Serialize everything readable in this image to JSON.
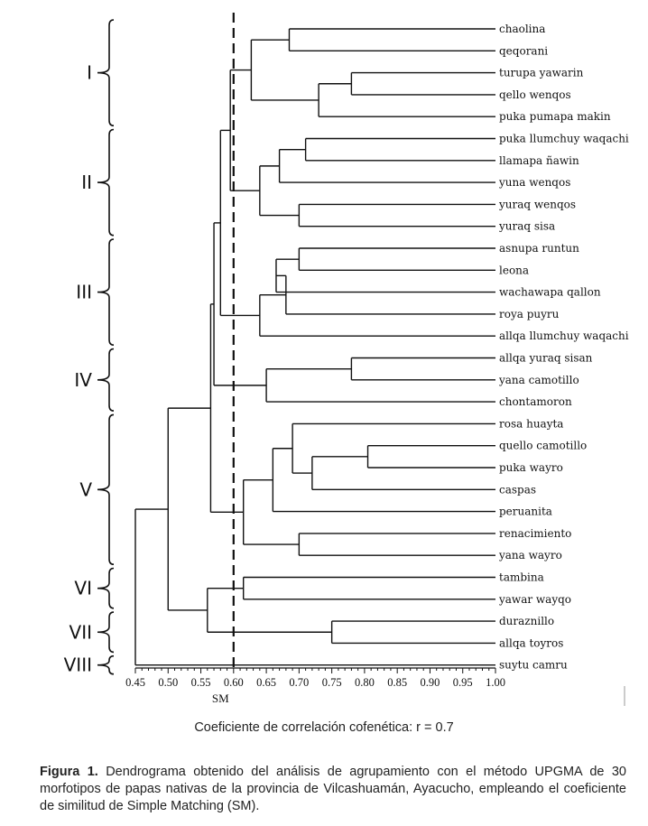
{
  "chart_data": {
    "type": "dendrogram",
    "xlabel": "SM",
    "xlim": [
      0.45,
      1.0
    ],
    "xticks": [
      "0.45",
      "0.50",
      "0.55",
      "0.60",
      "0.65",
      "0.70",
      "0.75",
      "0.80",
      "0.85",
      "0.90",
      "0.95",
      "1.00"
    ],
    "cutoff": 0.6,
    "leaves": [
      "chaolina",
      "qeqorani",
      "turupa yawarin",
      "qello wenqos",
      "puka pumapa makin",
      "puka llumchuy waqachi",
      "llamapa ñawin",
      "yuna wenqos",
      "yuraq wenqos",
      "yuraq sisa",
      "asnupa runtun",
      "leona",
      "wachawapa qallon",
      "roya puyru",
      "allqa llumchuy waqachi",
      "allqa yuraq sisan",
      "yana camotillo",
      "chontamoron",
      "rosa huayta",
      "quello camotillo",
      "puka wayro",
      "caspas",
      "peruanita",
      "renacimiento",
      "yana wayro",
      "tambina",
      "yawar wayqo",
      "duraznillo",
      "allqa toyros",
      "suytu camru"
    ],
    "merges": [
      {
        "a": "L2",
        "b": "L3",
        "sim": 0.78
      },
      {
        "a": "L0",
        "b": "L1",
        "sim": 0.685
      },
      {
        "a": "N0",
        "b": "L4",
        "sim": 0.73
      },
      {
        "a": "N1",
        "b": "N2",
        "sim": 0.627
      },
      {
        "a": "L5",
        "b": "L6",
        "sim": 0.71
      },
      {
        "a": "N4",
        "b": "L7",
        "sim": 0.67
      },
      {
        "a": "L8",
        "b": "L9",
        "sim": 0.7
      },
      {
        "a": "N5",
        "b": "N6",
        "sim": 0.64
      },
      {
        "a": "N3",
        "b": "N7",
        "sim": 0.595
      },
      {
        "a": "L10",
        "b": "L11",
        "sim": 0.7
      },
      {
        "a": "N9",
        "b": "L12",
        "sim": 0.665
      },
      {
        "a": "N10",
        "b": "L13",
        "sim": 0.68
      },
      {
        "a": "N11",
        "b": "L14",
        "sim": 0.64
      },
      {
        "a": "N8",
        "b": "N12",
        "sim": 0.58
      },
      {
        "a": "L15",
        "b": "L16",
        "sim": 0.78
      },
      {
        "a": "N14",
        "b": "L17",
        "sim": 0.65
      },
      {
        "a": "N13",
        "b": "N15",
        "sim": 0.57
      },
      {
        "a": "L19",
        "b": "L20",
        "sim": 0.805
      },
      {
        "a": "N17",
        "b": "L21",
        "sim": 0.72
      },
      {
        "a": "L18",
        "b": "N18",
        "sim": 0.69
      },
      {
        "a": "N19",
        "b": "L22",
        "sim": 0.66
      },
      {
        "a": "L23",
        "b": "L24",
        "sim": 0.7
      },
      {
        "a": "N20",
        "b": "N21",
        "sim": 0.615
      },
      {
        "a": "N16",
        "b": "N22",
        "sim": 0.565
      },
      {
        "a": "L25",
        "b": "L26",
        "sim": 0.615
      },
      {
        "a": "L27",
        "b": "L28",
        "sim": 0.75
      },
      {
        "a": "N24",
        "b": "N25",
        "sim": 0.56
      },
      {
        "a": "N23",
        "b": "N26",
        "sim": 0.5
      },
      {
        "a": "N27",
        "b": "L29",
        "sim": 0.45
      }
    ],
    "groups": [
      {
        "label": "I",
        "first": 0,
        "last": 4
      },
      {
        "label": "II",
        "first": 5,
        "last": 9
      },
      {
        "label": "III",
        "first": 10,
        "last": 14
      },
      {
        "label": "IV",
        "first": 15,
        "last": 17
      },
      {
        "label": "V",
        "first": 18,
        "last": 24
      },
      {
        "label": "VI",
        "first": 25,
        "last": 26
      },
      {
        "label": "VII",
        "first": 27,
        "last": 28
      },
      {
        "label": "VIII",
        "first": 29,
        "last": 29
      }
    ]
  },
  "cophenetic_text": "Coeficiente de correlación cofenética: r = 0.7",
  "caption": {
    "label": "Figura 1.",
    "text": " Dendrograma obtenido del análisis de agrupamiento con el método UPGMA de 30 morfotipos de papas nativas de la provincia de Vilcashuamán, Ayacucho, empleando el coeficiente de similitud de Simple Matching (SM)."
  },
  "colors": {
    "line": "#111111",
    "text": "#222222"
  }
}
